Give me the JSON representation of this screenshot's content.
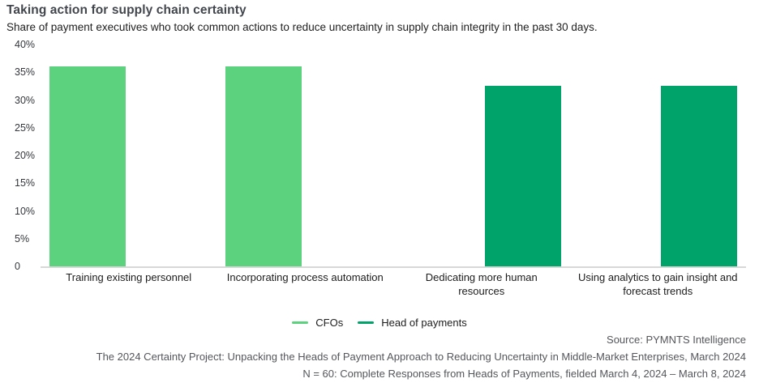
{
  "header": {
    "title": "Taking action for supply chain certainty",
    "subtitle": "Share of payment executives who took common actions to reduce uncertainty in supply chain integrity in the past 30 days."
  },
  "chart_data": {
    "type": "bar",
    "title": "Taking action for supply chain certainty",
    "xlabel": "",
    "ylabel": "",
    "categories": [
      "Training existing personnel",
      "Incorporating process automation",
      "Dedicating more human resources",
      "Using analytics to gain insight and forecast trends"
    ],
    "series": [
      {
        "name": "CFOs",
        "color": "#5CD17E",
        "values": [
          36,
          36,
          null,
          null
        ]
      },
      {
        "name": "Head of payments",
        "color": "#00A369",
        "values": [
          null,
          null,
          32.5,
          32.5
        ]
      }
    ],
    "ylim": [
      0,
      40
    ],
    "yticks": [
      {
        "value": 40,
        "label": "40%"
      },
      {
        "value": 35,
        "label": "35%"
      },
      {
        "value": 30,
        "label": "30%"
      },
      {
        "value": 25,
        "label": "25%"
      },
      {
        "value": 20,
        "label": "20%"
      },
      {
        "value": 15,
        "label": "15%"
      },
      {
        "value": 10,
        "label": "10%"
      },
      {
        "value": 5,
        "label": "5%"
      },
      {
        "value": 0,
        "label": "0"
      }
    ],
    "grid": false,
    "legend_position": "bottom-center"
  },
  "footer": {
    "source": "Source: PYMNTS Intelligence",
    "citation": "The 2024 Certainty Project: Unpacking the Heads of Payment Approach to Reducing Uncertainty in Middle-Market Enterprises, March 2024",
    "sample": "N = 60: Complete Responses from Heads of Payments, fielded March 4, 2024 – March 8, 2024"
  },
  "colors": {
    "cfos_bar": "#5CD17E",
    "head_of_payments_bar": "#00A369",
    "axis_line": "#D8D8D8",
    "title_text": "#42464D",
    "body_text": "#1C1C1C",
    "footer_text": "#54565B"
  }
}
